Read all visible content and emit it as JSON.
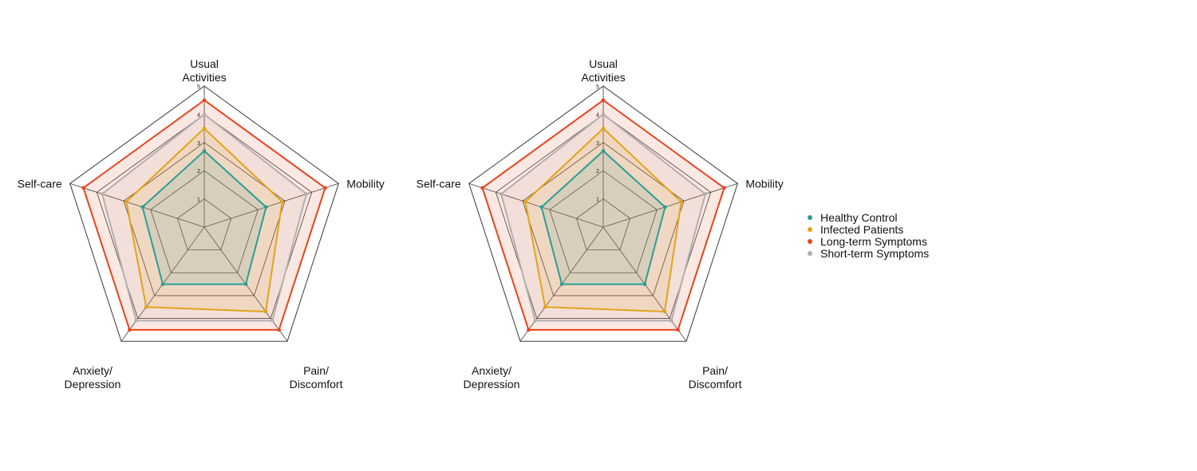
{
  "chart_data": [
    {
      "type": "radar",
      "axes": [
        "Usual\nActivities",
        "Mobility",
        "Pain/\nDiscomfort",
        "Anxiety/\nDepression",
        "Self-care"
      ],
      "ticks": [
        "1",
        "2",
        "3",
        "4",
        "5"
      ],
      "rmax": 5,
      "grid": true,
      "series": [
        {
          "name": "Short-term Symptoms",
          "color": "#b0b0b0",
          "values": [
            4.0,
            3.8,
            4.1,
            4.1,
            3.8
          ]
        },
        {
          "name": "Long-term Symptoms",
          "color": "#e8431c",
          "values": [
            4.5,
            4.5,
            4.5,
            4.5,
            4.5
          ]
        },
        {
          "name": "Infected Patients",
          "color": "#e1a419",
          "values": [
            3.5,
            2.9,
            3.7,
            3.5,
            2.9
          ]
        },
        {
          "name": "Healthy Control",
          "color": "#2a9d96",
          "values": [
            2.7,
            2.3,
            2.5,
            2.5,
            2.3
          ]
        }
      ]
    },
    {
      "type": "radar",
      "axes": [
        "Usual\nActivities",
        "Mobility",
        "Pain/\nDiscomfort",
        "Anxiety/\nDepression",
        "Self-care"
      ],
      "ticks": [
        "1",
        "2",
        "3",
        "4",
        "5"
      ],
      "rmax": 5,
      "grid": true,
      "series": [
        {
          "name": "Short-term Symptoms",
          "color": "#b0b0b0",
          "values": [
            4.0,
            3.8,
            4.1,
            4.1,
            3.8
          ]
        },
        {
          "name": "Long-term Symptoms",
          "color": "#e8431c",
          "values": [
            4.5,
            4.5,
            4.5,
            4.5,
            4.5
          ]
        },
        {
          "name": "Infected Patients",
          "color": "#e1a419",
          "values": [
            3.5,
            2.9,
            3.7,
            3.5,
            2.9
          ]
        },
        {
          "name": "Healthy Control",
          "color": "#2a9d96",
          "values": [
            2.7,
            2.3,
            2.5,
            2.5,
            2.3
          ]
        }
      ]
    }
  ],
  "legend": {
    "placement": "right",
    "items": [
      {
        "label": "Healthy Control",
        "color": "#2a9d96"
      },
      {
        "label": "Infected Patients",
        "color": "#e1a419"
      },
      {
        "label": "Long-term Symptoms",
        "color": "#e8431c"
      },
      {
        "label": "Short-term Symptoms",
        "color": "#b0b0b0"
      }
    ]
  }
}
